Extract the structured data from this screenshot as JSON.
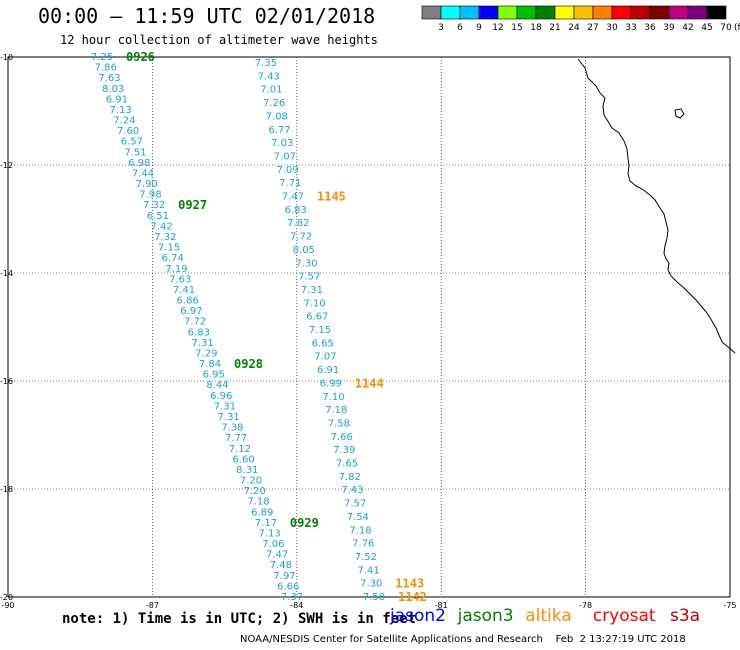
{
  "title": "00:00 – 11:59 UTC 02/01/2018",
  "subtitle": "12 hour collection of altimeter wave heights",
  "color_scale": {
    "unit": "(ft)",
    "colors": [
      "#7f7f7f",
      "#00ffff",
      "#00bfff",
      "#0000ff",
      "#7fff00",
      "#00bf00",
      "#008000",
      "#ffff00",
      "#ffbf00",
      "#ff7f00",
      "#ff0000",
      "#bf0000",
      "#7f0000",
      "#bf007f",
      "#7f007f",
      "#000000"
    ],
    "labels": [
      "3",
      "6",
      "9",
      "12",
      "15",
      "18",
      "21",
      "24",
      "27",
      "30",
      "33",
      "36",
      "39",
      "42",
      "45",
      "70"
    ]
  },
  "map": {
    "lon_labels": [
      "-90",
      "-87",
      "-84",
      "-81",
      "-78",
      "-75"
    ],
    "lat_labels": [
      "-10",
      "-12",
      "-14",
      "-16",
      "-18",
      "-20"
    ],
    "track_color": "#1ca0dc",
    "time_colors": {
      "jason3": "#008000",
      "altika": "#ff8c00"
    },
    "tracks": [
      {
        "name": "track-a",
        "values": [
          "7.25",
          "7.86",
          "7.63",
          "8.03",
          "6.91",
          "7.13",
          "7.24",
          "7.60",
          "6.57",
          "7.51",
          "6.98",
          "7.44",
          "7.90",
          "7.98",
          "7.32",
          "6.51",
          "7.42",
          "7.32",
          "7.15",
          "6.74",
          "7.19",
          "7.63",
          "7.41",
          "6.86",
          "6.97",
          "7.72",
          "6.83",
          "7.31",
          "7.29",
          "7.84",
          "6.95",
          "8.44",
          "6.96",
          "7.31",
          "7.31",
          "7.38",
          "7.77",
          "7.12",
          "6.60",
          "8.31",
          "7.20",
          "7.20",
          "7.18",
          "6.89",
          "7.17",
          "7.13",
          "7.06",
          "7.47",
          "7.48",
          "7.97",
          "6.66",
          "7.37"
        ],
        "times": [
          {
            "label": "0926",
            "sat": "jason3",
            "index": 0
          },
          {
            "label": "0927",
            "sat": "jason3",
            "index": 14
          },
          {
            "label": "0928",
            "sat": "jason3",
            "index": 29
          },
          {
            "label": "0929",
            "sat": "jason3",
            "index": 44
          }
        ]
      },
      {
        "name": "track-b",
        "values": [
          "7.35",
          "7.43",
          "7.01",
          "7.26",
          "7.08",
          "6.77",
          "7.03",
          "7.07",
          "7.09",
          "7.71",
          "7.47",
          "6.83",
          "7.82",
          "7.72",
          "8.05",
          "7.30",
          "7.57",
          "7.31",
          "7.10",
          "6.67",
          "7.15",
          "6.65",
          "7.07",
          "6.91",
          "6.99",
          "7.10",
          "7.18",
          "7.58",
          "7.66",
          "7.39",
          "7.65",
          "7.82",
          "7.43",
          "7.57",
          "7.54",
          "7.18",
          "7.76",
          "7.52",
          "7.41",
          "7.30",
          "7.58"
        ],
        "times": [
          {
            "label": "1145",
            "sat": "altika",
            "index": 10
          },
          {
            "label": "1144",
            "sat": "altika",
            "index": 24
          },
          {
            "label": "1143",
            "sat": "altika",
            "index": 39
          },
          {
            "label": "1142",
            "sat": "altika",
            "index": 40
          }
        ]
      }
    ]
  },
  "note": "note: 1) Time is in UTC; 2) SWH is in feet",
  "satellites": [
    {
      "name": "jason2",
      "color": "#0000ff"
    },
    {
      "name": "jason3",
      "color": "#008000"
    },
    {
      "name": "altika",
      "color": "#ff8c00"
    },
    {
      "name": "cryosat",
      "color": "#ff0000"
    },
    {
      "name": "s3a",
      "color": "#bf0000"
    }
  ],
  "footer": "NOAA/NESDIS Center for Satellite Applications and Research    Feb  2 13:27:19 UTC 2018"
}
